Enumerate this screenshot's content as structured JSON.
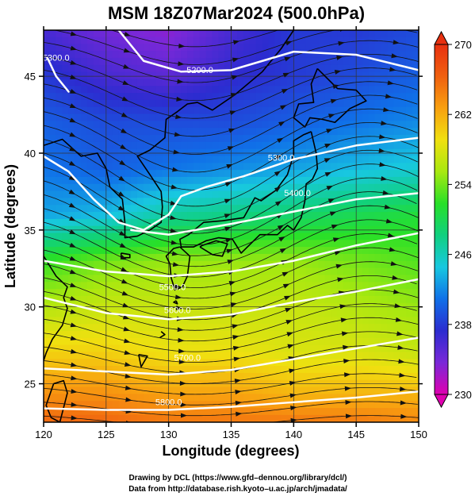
{
  "chart_data": {
    "type": "heatmap",
    "title": "MSM 18Z07Mar2024 (500.0hPa)",
    "xlabel": "Longitude (degrees)",
    "ylabel": "Latitude  (degrees)",
    "xlim": [
      120,
      150
    ],
    "ylim": [
      22.5,
      48
    ],
    "x_ticks": [
      120,
      125,
      130,
      135,
      140,
      145,
      150
    ],
    "y_ticks": [
      25,
      30,
      35,
      40,
      45
    ],
    "colorbar": {
      "min": 230,
      "max": 270,
      "ticks": [
        230,
        238,
        246,
        254,
        262,
        270
      ],
      "colors": [
        "#e000b0",
        "#7a28d8",
        "#2c2cd0",
        "#1070e8",
        "#18c8e0",
        "#10d080",
        "#28e028",
        "#a8e810",
        "#f0e010",
        "#f8a010",
        "#f06010",
        "#e83010"
      ]
    },
    "temperature_field": {
      "lon": [
        120,
        125,
        130,
        135,
        140,
        145,
        150
      ],
      "lat": [
        48,
        45,
        42,
        39,
        36,
        33,
        30,
        27,
        24,
        22.5
      ],
      "values": [
        [
          236,
          234,
          233,
          236,
          238,
          238,
          239
        ],
        [
          238,
          236,
          235,
          237,
          238,
          239,
          240
        ],
        [
          240,
          239,
          239,
          239,
          240,
          241,
          242
        ],
        [
          241,
          240,
          241,
          242,
          243,
          244,
          245
        ],
        [
          243,
          244,
          247,
          248,
          249,
          250,
          251
        ],
        [
          252,
          254,
          255,
          255,
          255,
          254,
          253
        ],
        [
          256,
          257,
          257,
          257,
          257,
          256,
          255
        ],
        [
          260,
          260,
          259,
          259,
          258,
          258,
          257
        ],
        [
          264,
          264,
          263,
          263,
          262,
          262,
          262
        ],
        [
          266,
          266,
          265,
          265,
          265,
          265,
          264
        ]
      ]
    },
    "height_contours": [
      {
        "label": "5200.0",
        "points": [
          [
            126,
            48
          ],
          [
            128,
            46
          ],
          [
            131,
            45.3
          ],
          [
            135,
            45.4
          ],
          [
            140,
            46.6
          ],
          [
            145,
            46.4
          ],
          [
            150,
            45.4
          ]
        ],
        "label_at": [
          132.5,
          45.2
        ]
      },
      {
        "label": "5300.0",
        "points": [
          [
            120,
            39.8
          ],
          [
            122,
            38.8
          ],
          [
            124,
            37
          ],
          [
            126,
            35.5
          ],
          [
            128,
            35
          ],
          [
            130,
            36
          ],
          [
            131,
            37.2
          ],
          [
            133,
            37.8
          ],
          [
            136,
            38.5
          ],
          [
            140,
            39.6
          ],
          [
            145,
            40.5
          ],
          [
            150,
            41
          ]
        ],
        "label_at": [
          139,
          39.5
        ]
      },
      {
        "label": "5400.0",
        "points": [
          [
            127,
            35
          ],
          [
            130,
            34.7
          ],
          [
            135,
            35.4
          ],
          [
            140,
            36.2
          ],
          [
            145,
            37
          ],
          [
            150,
            37.4
          ]
        ],
        "label_at": [
          140.3,
          37.2
        ]
      },
      {
        "label": "5500.0",
        "points": [
          [
            120,
            33
          ],
          [
            125,
            32.3
          ],
          [
            130,
            32
          ],
          [
            135,
            32.3
          ],
          [
            140,
            33
          ],
          [
            145,
            34
          ],
          [
            150,
            34.8
          ]
        ],
        "label_at": [
          130.3,
          31.1
        ]
      },
      {
        "label": "5600.0",
        "points": [
          [
            120,
            30.6
          ],
          [
            125,
            29.6
          ],
          [
            130,
            29.2
          ],
          [
            135,
            29.5
          ],
          [
            140,
            30.3
          ],
          [
            145,
            31
          ],
          [
            150,
            31.8
          ]
        ],
        "label_at": [
          130.7,
          29.6
        ]
      },
      {
        "label": "5700.0",
        "points": [
          [
            120,
            26
          ],
          [
            125,
            25.8
          ],
          [
            130,
            25.6
          ],
          [
            135,
            25.9
          ],
          [
            140,
            26.6
          ],
          [
            145,
            27.3
          ],
          [
            150,
            28
          ]
        ],
        "label_at": [
          131.5,
          26.5
        ]
      },
      {
        "label": "5800.0",
        "points": [
          [
            120,
            23.4
          ],
          [
            125,
            23.3
          ],
          [
            130,
            23.3
          ],
          [
            135,
            23.5
          ],
          [
            140,
            23.8
          ],
          [
            145,
            24.1
          ],
          [
            150,
            24.5
          ]
        ],
        "label_at": [
          130,
          23.6
        ]
      },
      {
        "label": "5300.0",
        "points": [
          [
            120.3,
            46.2
          ],
          [
            121,
            45
          ],
          [
            122,
            44
          ]
        ],
        "label_at": [
          121,
          46
        ]
      }
    ]
  },
  "credits": {
    "line1": "Drawing by DCL (https://www.gfd–dennou.org/library/dcl/)",
    "line2": "Data from http://database.rish.kyoto–u.ac.jp/arch/jmadata/"
  }
}
